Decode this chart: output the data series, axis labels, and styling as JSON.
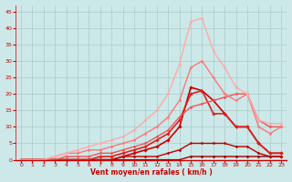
{
  "xlabel": "Vent moyen/en rafales ( km/h )",
  "xlim": [
    -0.5,
    23.5
  ],
  "ylim": [
    0,
    47
  ],
  "yticks": [
    0,
    5,
    10,
    15,
    20,
    25,
    30,
    35,
    40,
    45
  ],
  "xticks": [
    0,
    1,
    2,
    3,
    4,
    5,
    6,
    7,
    8,
    9,
    10,
    11,
    12,
    13,
    14,
    15,
    16,
    17,
    18,
    19,
    20,
    21,
    22,
    23
  ],
  "bg_color": "#cce8e8",
  "grid_color": "#aacccc",
  "lines": [
    {
      "x": [
        0,
        1,
        2,
        3,
        4,
        5,
        6,
        7,
        8,
        9,
        10,
        11,
        12,
        13,
        14,
        15,
        16,
        17,
        18,
        19,
        20,
        21,
        22,
        23
      ],
      "y": [
        0,
        0,
        0,
        0,
        0,
        0,
        0,
        0,
        0,
        0,
        0,
        0,
        0,
        0,
        0,
        1,
        1,
        1,
        1,
        1,
        1,
        1,
        1,
        1
      ],
      "color": "#990000",
      "lw": 1.0,
      "marker": "D",
      "ms": 1.5
    },
    {
      "x": [
        0,
        1,
        2,
        3,
        4,
        5,
        6,
        7,
        8,
        9,
        10,
        11,
        12,
        13,
        14,
        15,
        16,
        17,
        18,
        19,
        20,
        21,
        22,
        23
      ],
      "y": [
        0,
        0,
        0,
        0,
        0,
        0,
        0,
        0,
        0,
        1,
        1,
        1,
        1,
        2,
        3,
        5,
        5,
        5,
        5,
        4,
        4,
        2,
        1,
        1
      ],
      "color": "#bb0000",
      "lw": 1.0,
      "marker": "D",
      "ms": 1.5
    },
    {
      "x": [
        0,
        1,
        2,
        3,
        4,
        5,
        6,
        7,
        8,
        9,
        10,
        11,
        12,
        13,
        14,
        15,
        16,
        17,
        18,
        19,
        20,
        21,
        22,
        23
      ],
      "y": [
        0,
        0,
        0,
        0,
        0,
        0,
        0,
        0,
        0,
        1,
        2,
        3,
        4,
        6,
        10,
        22,
        21,
        18,
        14,
        10,
        10,
        5,
        2,
        2
      ],
      "color": "#cc0000",
      "lw": 1.2,
      "marker": "D",
      "ms": 1.8
    },
    {
      "x": [
        0,
        1,
        2,
        3,
        4,
        5,
        6,
        7,
        8,
        9,
        10,
        11,
        12,
        13,
        14,
        15,
        16,
        17,
        18,
        19,
        20,
        21,
        22,
        23
      ],
      "y": [
        0,
        0,
        0,
        0,
        0,
        0,
        0,
        1,
        1,
        2,
        3,
        4,
        6,
        8,
        12,
        20,
        21,
        14,
        14,
        10,
        10,
        5,
        2,
        2
      ],
      "color": "#dd2222",
      "lw": 1.2,
      "marker": "D",
      "ms": 1.8
    },
    {
      "x": [
        0,
        1,
        2,
        3,
        4,
        5,
        6,
        7,
        8,
        9,
        10,
        11,
        12,
        13,
        14,
        15,
        16,
        17,
        18,
        19,
        20,
        21,
        22,
        23
      ],
      "y": [
        0,
        0,
        0,
        0,
        1,
        1,
        1,
        2,
        2,
        3,
        4,
        5,
        7,
        9,
        13,
        16,
        17,
        18,
        19,
        20,
        20,
        12,
        10,
        10
      ],
      "color": "#ee5555",
      "lw": 1.0,
      "marker": "D",
      "ms": 1.5
    },
    {
      "x": [
        0,
        1,
        2,
        3,
        4,
        5,
        6,
        7,
        8,
        9,
        10,
        11,
        12,
        13,
        14,
        15,
        16,
        17,
        18,
        19,
        20,
        21,
        22,
        23
      ],
      "y": [
        0,
        0,
        0,
        1,
        2,
        2,
        3,
        3,
        4,
        5,
        6,
        8,
        10,
        13,
        18,
        28,
        30,
        25,
        20,
        18,
        20,
        10,
        8,
        10
      ],
      "color": "#ff7777",
      "lw": 1.0,
      "marker": "D",
      "ms": 1.5
    },
    {
      "x": [
        0,
        1,
        2,
        3,
        4,
        5,
        6,
        7,
        8,
        9,
        10,
        11,
        12,
        13,
        14,
        15,
        16,
        17,
        18,
        19,
        20,
        21,
        22,
        23
      ],
      "y": [
        0,
        0,
        0,
        1,
        2,
        3,
        4,
        5,
        6,
        7,
        9,
        12,
        15,
        20,
        29,
        42,
        43,
        33,
        28,
        22,
        20,
        12,
        11,
        11
      ],
      "color": "#ffaaaa",
      "lw": 1.0,
      "marker": "D",
      "ms": 1.5
    }
  ]
}
